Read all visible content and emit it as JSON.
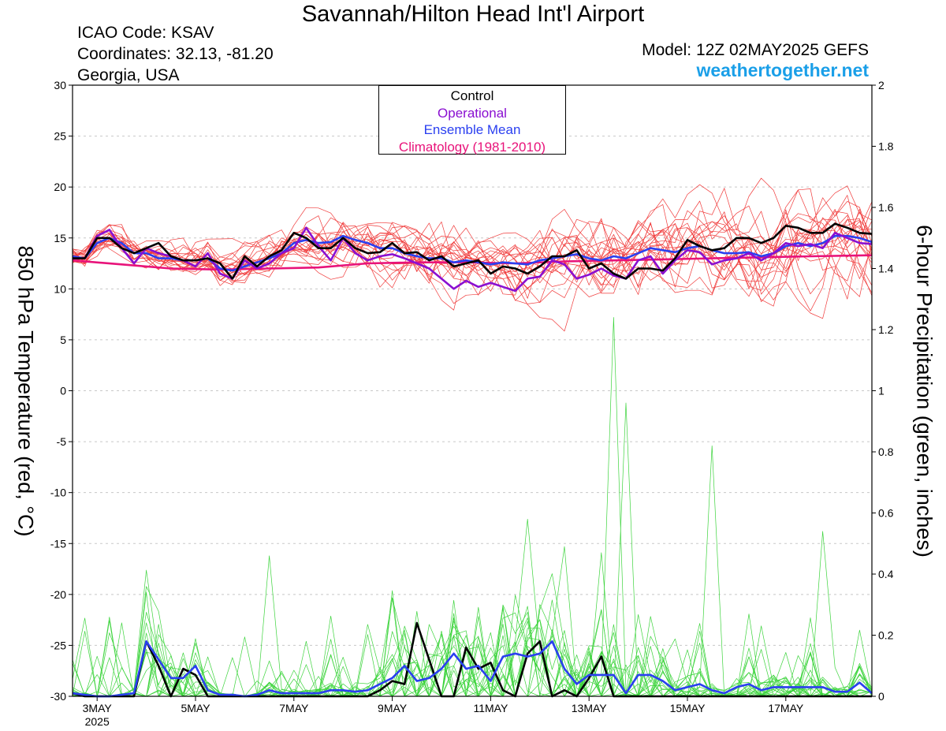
{
  "header": {
    "title": "Savannah/Hilton Head Int'l Airport",
    "icao": "ICAO Code: KSAV",
    "coords": "Coordinates: 32.13, -81.20",
    "region": "Georgia, USA",
    "model": "Model: 12Z 02MAY2025 GEFS",
    "site": "weathertogether.net"
  },
  "legend": [
    {
      "label": "Control",
      "color": "#000000"
    },
    {
      "label": "Operational",
      "color": "#8a0fd1"
    },
    {
      "label": "Ensemble Mean",
      "color": "#2a3ff0"
    },
    {
      "label": "Climatology (1981-2010)",
      "color": "#e8137a"
    }
  ],
  "chart_data": {
    "type": "line",
    "ylabel_left": "850 hPa Temperature (red, °C)",
    "ylabel_right": "6-hour Precipitation (green, inches)",
    "ylim_left": [
      -30,
      30
    ],
    "yticks_left": [
      30,
      25,
      20,
      15,
      10,
      5,
      0,
      -5,
      -10,
      -15,
      -20,
      -25,
      -30
    ],
    "ylim_right": [
      0,
      2
    ],
    "yticks_right": [
      "2",
      "1.8",
      "1.6",
      "1.4",
      "1.2",
      "1",
      "0.8",
      "0.6",
      "0.4",
      "0.2",
      "0"
    ],
    "xlim_days": [
      2.5,
      18.75
    ],
    "xticks": [
      {
        "day": 3,
        "label": "3MAY"
      },
      {
        "day": 5,
        "label": "5MAY"
      },
      {
        "day": 7,
        "label": "7MAY"
      },
      {
        "day": 9,
        "label": "9MAY"
      },
      {
        "day": 11,
        "label": "11MAY"
      },
      {
        "day": 13,
        "label": "13MAY"
      },
      {
        "day": 15,
        "label": "15MAY"
      },
      {
        "day": 17,
        "label": "17MAY"
      }
    ],
    "year_label": "2025",
    "series_colors": {
      "members_temp": "#f03a3a",
      "members_precip": "#3dd43d",
      "control": "#000000",
      "operational": "#8a0fd1",
      "mean": "#2a3ff0",
      "climatology": "#e8137a"
    },
    "operational_temp": [
      [
        2.5,
        13
      ],
      [
        2.75,
        13
      ],
      [
        3.0,
        15.2
      ],
      [
        3.25,
        15.8
      ],
      [
        3.5,
        14
      ],
      [
        3.75,
        12.5
      ],
      [
        4.0,
        14
      ],
      [
        4.25,
        13.5
      ],
      [
        4.5,
        13.2
      ],
      [
        4.75,
        12.8
      ],
      [
        5.0,
        12.2
      ],
      [
        5.25,
        13.5
      ],
      [
        5.5,
        11.5
      ],
      [
        5.75,
        11
      ],
      [
        6.0,
        12.8
      ],
      [
        6.25,
        12
      ],
      [
        6.5,
        12.5
      ],
      [
        6.75,
        13.5
      ],
      [
        7.0,
        14
      ],
      [
        7.25,
        16
      ],
      [
        7.5,
        14.2
      ],
      [
        7.75,
        12.8
      ],
      [
        8.0,
        15
      ],
      [
        8.25,
        13.5
      ],
      [
        8.5,
        12.8
      ],
      [
        8.75,
        13.2
      ],
      [
        9.0,
        13.4
      ],
      [
        9.25,
        13
      ],
      [
        9.5,
        12.5
      ],
      [
        9.75,
        12
      ],
      [
        10.0,
        11
      ],
      [
        10.25,
        10
      ],
      [
        10.5,
        10.8
      ],
      [
        10.75,
        10.2
      ],
      [
        11.0,
        10.6
      ],
      [
        11.25,
        10.2
      ],
      [
        11.5,
        9.8
      ],
      [
        11.75,
        11
      ],
      [
        12.0,
        11.2
      ],
      [
        12.25,
        12.8
      ],
      [
        12.5,
        12.4
      ],
      [
        12.75,
        11
      ],
      [
        13.0,
        11.4
      ],
      [
        13.25,
        12
      ],
      [
        13.5,
        11.3
      ],
      [
        13.75,
        11
      ],
      [
        14.0,
        12.8
      ],
      [
        14.25,
        13.2
      ],
      [
        14.5,
        11.5
      ],
      [
        14.75,
        12.8
      ],
      [
        15.0,
        13.8
      ],
      [
        15.25,
        13.6
      ],
      [
        15.5,
        12.4
      ],
      [
        15.75,
        12.8
      ],
      [
        16.0,
        13
      ],
      [
        16.25,
        13.5
      ],
      [
        16.5,
        12.8
      ],
      [
        16.75,
        13.5
      ],
      [
        17.0,
        14.5
      ],
      [
        17.25,
        14.2
      ],
      [
        17.5,
        14.4
      ],
      [
        17.75,
        14
      ],
      [
        18.0,
        15.5
      ],
      [
        18.25,
        15
      ],
      [
        18.5,
        14.5
      ],
      [
        18.75,
        14.4
      ]
    ],
    "control_temp": [
      [
        2.5,
        13
      ],
      [
        2.75,
        13
      ],
      [
        3.0,
        15
      ],
      [
        3.25,
        15
      ],
      [
        3.5,
        14
      ],
      [
        3.75,
        13.5
      ],
      [
        4.0,
        14
      ],
      [
        4.25,
        14.5
      ],
      [
        4.5,
        13.2
      ],
      [
        4.75,
        12.8
      ],
      [
        5.0,
        12.8
      ],
      [
        5.25,
        13
      ],
      [
        5.5,
        12.5
      ],
      [
        5.75,
        11
      ],
      [
        6.0,
        13.2
      ],
      [
        6.25,
        12.2
      ],
      [
        6.5,
        13.2
      ],
      [
        6.75,
        13.8
      ],
      [
        7.0,
        15.5
      ],
      [
        7.25,
        15
      ],
      [
        7.5,
        14
      ],
      [
        7.75,
        14
      ],
      [
        8.0,
        15
      ],
      [
        8.25,
        14
      ],
      [
        8.5,
        13.5
      ],
      [
        8.75,
        13.6
      ],
      [
        9.0,
        14.5
      ],
      [
        9.25,
        13.5
      ],
      [
        9.5,
        13.6
      ],
      [
        9.75,
        12.8
      ],
      [
        10.0,
        13.2
      ],
      [
        10.25,
        12.2
      ],
      [
        10.5,
        12.5
      ],
      [
        10.75,
        12.8
      ],
      [
        11.0,
        11.5
      ],
      [
        11.25,
        12.2
      ],
      [
        11.5,
        12
      ],
      [
        11.75,
        11.5
      ],
      [
        12.0,
        12.2
      ],
      [
        12.25,
        13.2
      ],
      [
        12.5,
        13.2
      ],
      [
        12.75,
        13.8
      ],
      [
        13.0,
        12
      ],
      [
        13.25,
        12.5
      ],
      [
        13.5,
        11.5
      ],
      [
        13.75,
        11
      ],
      [
        14.0,
        12
      ],
      [
        14.25,
        12
      ],
      [
        14.5,
        11.8
      ],
      [
        14.75,
        13
      ],
      [
        15.0,
        14.8
      ],
      [
        15.25,
        14.2
      ],
      [
        15.5,
        13.8
      ],
      [
        15.75,
        14
      ],
      [
        16.0,
        15
      ],
      [
        16.25,
        15
      ],
      [
        16.5,
        14.5
      ],
      [
        16.75,
        15
      ],
      [
        17.0,
        16.2
      ],
      [
        17.25,
        16
      ],
      [
        17.5,
        15.5
      ],
      [
        17.75,
        15.5
      ],
      [
        18.0,
        16.4
      ],
      [
        18.25,
        16
      ],
      [
        18.5,
        15.5
      ],
      [
        18.75,
        15.4
      ]
    ],
    "mean_temp": [
      [
        2.5,
        13.2
      ],
      [
        2.75,
        13
      ],
      [
        3.0,
        14.5
      ],
      [
        3.25,
        15
      ],
      [
        3.5,
        14.5
      ],
      [
        3.75,
        13.5
      ],
      [
        4.0,
        13.5
      ],
      [
        4.25,
        13
      ],
      [
        4.5,
        13
      ],
      [
        4.75,
        12.8
      ],
      [
        5.0,
        12.8
      ],
      [
        5.25,
        13
      ],
      [
        5.5,
        12
      ],
      [
        5.75,
        11.8
      ],
      [
        6.0,
        12.2
      ],
      [
        6.25,
        12.6
      ],
      [
        6.5,
        13
      ],
      [
        6.75,
        13.5
      ],
      [
        7.0,
        14.5
      ],
      [
        7.25,
        14.8
      ],
      [
        7.5,
        14.5
      ],
      [
        7.75,
        14.6
      ],
      [
        8.0,
        15.2
      ],
      [
        8.25,
        14.8
      ],
      [
        8.5,
        14.5
      ],
      [
        8.75,
        14
      ],
      [
        9.0,
        14
      ],
      [
        9.25,
        13.5
      ],
      [
        9.5,
        13.2
      ],
      [
        9.75,
        13
      ],
      [
        10.0,
        13
      ],
      [
        10.25,
        12.6
      ],
      [
        10.5,
        12.8
      ],
      [
        10.75,
        12.6
      ],
      [
        11.0,
        12.4
      ],
      [
        11.25,
        12.6
      ],
      [
        11.5,
        12.5
      ],
      [
        11.75,
        12.4
      ],
      [
        12.0,
        12.8
      ],
      [
        12.25,
        13
      ],
      [
        12.5,
        13.2
      ],
      [
        12.75,
        13.4
      ],
      [
        13.0,
        13
      ],
      [
        13.25,
        12.8
      ],
      [
        13.5,
        13.2
      ],
      [
        13.75,
        13
      ],
      [
        14.0,
        13.5
      ],
      [
        14.25,
        14
      ],
      [
        14.5,
        13.8
      ],
      [
        14.75,
        13.6
      ],
      [
        15.0,
        14
      ],
      [
        15.25,
        14.2
      ],
      [
        15.5,
        13.8
      ],
      [
        15.75,
        13.5
      ],
      [
        16.0,
        13.5
      ],
      [
        16.25,
        13.6
      ],
      [
        16.5,
        13.2
      ],
      [
        16.75,
        13.5
      ],
      [
        17.0,
        14.2
      ],
      [
        17.25,
        14.5
      ],
      [
        17.5,
        14.2
      ],
      [
        17.75,
        14.5
      ],
      [
        18.0,
        15.2
      ],
      [
        18.25,
        15.2
      ],
      [
        18.5,
        15
      ],
      [
        18.75,
        14.6
      ]
    ],
    "climatology_temp": [
      [
        2.5,
        12.8
      ],
      [
        3.5,
        12.4
      ],
      [
        4.5,
        12.0
      ],
      [
        5.5,
        11.9
      ],
      [
        6.5,
        12.0
      ],
      [
        7.5,
        12.1
      ],
      [
        8.5,
        12.5
      ],
      [
        9.5,
        12.6
      ],
      [
        10.5,
        12.6
      ],
      [
        11.5,
        12.5
      ],
      [
        12.5,
        12.7
      ],
      [
        13.5,
        12.8
      ],
      [
        14.5,
        12.9
      ],
      [
        15.5,
        13.0
      ],
      [
        16.5,
        13.1
      ],
      [
        17.5,
        13.2
      ],
      [
        18.75,
        13.3
      ]
    ],
    "mean_precip": [
      [
        2.5,
        0.01
      ],
      [
        2.75,
        0.005
      ],
      [
        3.0,
        0
      ],
      [
        3.25,
        0
      ],
      [
        3.5,
        0.005
      ],
      [
        3.75,
        0.01
      ],
      [
        4.0,
        0.18
      ],
      [
        4.25,
        0.12
      ],
      [
        4.5,
        0.06
      ],
      [
        4.75,
        0.06
      ],
      [
        5.0,
        0.1
      ],
      [
        5.25,
        0.02
      ],
      [
        5.5,
        0.005
      ],
      [
        5.75,
        0.005
      ],
      [
        6.0,
        0
      ],
      [
        6.25,
        0.005
      ],
      [
        6.5,
        0.02
      ],
      [
        6.75,
        0.01
      ],
      [
        7.0,
        0.01
      ],
      [
        7.25,
        0.01
      ],
      [
        7.5,
        0.01
      ],
      [
        7.75,
        0.02
      ],
      [
        8.0,
        0.02
      ],
      [
        8.25,
        0.015
      ],
      [
        8.5,
        0.02
      ],
      [
        8.75,
        0.04
      ],
      [
        9.0,
        0.06
      ],
      [
        9.25,
        0.1
      ],
      [
        9.5,
        0.05
      ],
      [
        9.75,
        0.06
      ],
      [
        10.0,
        0.09
      ],
      [
        10.25,
        0.14
      ],
      [
        10.5,
        0.09
      ],
      [
        10.75,
        0.1
      ],
      [
        11.0,
        0.05
      ],
      [
        11.25,
        0.13
      ],
      [
        11.5,
        0.14
      ],
      [
        11.75,
        0.13
      ],
      [
        12.0,
        0.14
      ],
      [
        12.25,
        0.18
      ],
      [
        12.5,
        0.09
      ],
      [
        12.75,
        0.04
      ],
      [
        13.0,
        0.07
      ],
      [
        13.25,
        0.07
      ],
      [
        13.5,
        0.07
      ],
      [
        13.75,
        0.01
      ],
      [
        14.0,
        0.07
      ],
      [
        14.25,
        0.07
      ],
      [
        14.5,
        0.05
      ],
      [
        14.75,
        0.02
      ],
      [
        15.0,
        0.03
      ],
      [
        15.25,
        0.04
      ],
      [
        15.5,
        0.02
      ],
      [
        15.75,
        0.01
      ],
      [
        16.0,
        0.03
      ],
      [
        16.25,
        0.04
      ],
      [
        16.5,
        0.02
      ],
      [
        16.75,
        0.03
      ],
      [
        17.0,
        0.03
      ],
      [
        17.25,
        0.03
      ],
      [
        17.5,
        0.03
      ],
      [
        17.75,
        0.03
      ],
      [
        18.0,
        0.015
      ],
      [
        18.25,
        0.015
      ],
      [
        18.5,
        0.045
      ],
      [
        18.75,
        0.01
      ]
    ],
    "control_precip": [
      [
        2.5,
        0.01
      ],
      [
        2.75,
        0
      ],
      [
        3.0,
        0
      ],
      [
        3.25,
        0
      ],
      [
        3.5,
        0
      ],
      [
        3.75,
        0
      ],
      [
        4.0,
        0.18
      ],
      [
        4.25,
        0.1
      ],
      [
        4.5,
        0
      ],
      [
        4.75,
        0.09
      ],
      [
        5.0,
        0.07
      ],
      [
        5.25,
        0
      ],
      [
        5.5,
        0
      ],
      [
        5.75,
        0
      ],
      [
        6.0,
        0
      ],
      [
        6.25,
        0
      ],
      [
        6.5,
        0
      ],
      [
        6.75,
        0
      ],
      [
        7.0,
        0
      ],
      [
        7.25,
        0
      ],
      [
        7.5,
        0
      ],
      [
        7.75,
        0
      ],
      [
        8.0,
        0
      ],
      [
        8.25,
        0
      ],
      [
        8.5,
        0
      ],
      [
        8.75,
        0.02
      ],
      [
        9.0,
        0.05
      ],
      [
        9.25,
        0.04
      ],
      [
        9.5,
        0.24
      ],
      [
        9.75,
        0.12
      ],
      [
        10.0,
        0
      ],
      [
        10.25,
        0
      ],
      [
        10.5,
        0.16
      ],
      [
        10.75,
        0.09
      ],
      [
        11.0,
        0.11
      ],
      [
        11.25,
        0.02
      ],
      [
        11.5,
        0
      ],
      [
        11.75,
        0.14
      ],
      [
        12.0,
        0.18
      ],
      [
        12.25,
        0
      ],
      [
        12.5,
        0.02
      ],
      [
        12.75,
        0
      ],
      [
        13.0,
        0.06
      ],
      [
        13.25,
        0.13
      ],
      [
        13.5,
        0
      ],
      [
        13.75,
        0
      ],
      [
        14.0,
        0
      ],
      [
        14.25,
        0
      ],
      [
        14.5,
        0
      ],
      [
        14.75,
        0
      ],
      [
        15.0,
        0
      ],
      [
        15.25,
        0
      ],
      [
        15.5,
        0
      ],
      [
        15.75,
        0
      ],
      [
        16.0,
        0
      ],
      [
        16.25,
        0
      ],
      [
        16.5,
        0
      ],
      [
        16.75,
        0
      ],
      [
        17.0,
        0
      ],
      [
        17.25,
        0
      ],
      [
        17.5,
        0
      ],
      [
        17.75,
        0
      ],
      [
        18.0,
        0
      ],
      [
        18.25,
        0
      ],
      [
        18.5,
        0
      ],
      [
        18.75,
        0
      ]
    ]
  }
}
